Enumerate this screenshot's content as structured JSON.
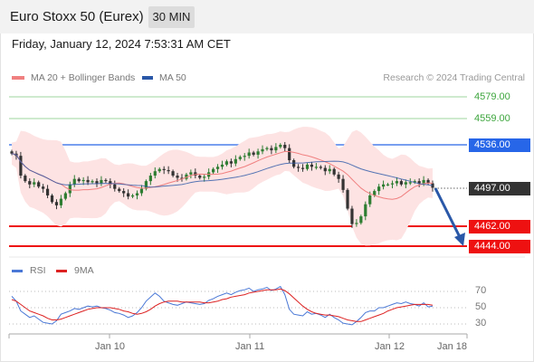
{
  "header": {
    "title": "Euro Stoxx 50 (Eurex)",
    "interval": "30 MIN",
    "datetime": "Friday, January 12, 2024 7:53:31 AM CET"
  },
  "legend": {
    "ma20": "MA 20 + Bollinger Bands",
    "ma50": "MA 50",
    "credit": "Research © 2024 Trading Central"
  },
  "colors": {
    "ma20": "#f08080",
    "ma50": "#2a58a8",
    "bollinger": "#fde3e3",
    "resistance_green": "#3ea63e",
    "pivot_blue": "#2766e8",
    "support_red": "#ee1111",
    "candle_up": "#2e7d32",
    "candle_down": "#333333",
    "rsi": "#4a78d6",
    "rsi_ma": "#dd2222"
  },
  "levels": {
    "r2": "4579.00",
    "r1": "4559.00",
    "pivot": "4536.00",
    "last": "4497.00",
    "s1": "4462.00",
    "s2": "4444.00"
  },
  "rsi_panel": {
    "rsi_label": "RSI",
    "ma_label": "9MA",
    "ticks": [
      "70",
      "50",
      "30"
    ]
  },
  "x_axis": [
    "Jan 10",
    "Jan 11",
    "Jan 12",
    "Jan 18"
  ],
  "chart_data": {
    "type": "candlestick",
    "y_reference_levels": [
      4579,
      4559,
      4536,
      4497,
      4462,
      4444
    ],
    "close_series": [
      4528,
      4526,
      4508,
      4503,
      4500,
      4502,
      4498,
      4496,
      4490,
      4484,
      4481,
      4487,
      4492,
      4500,
      4505,
      4503,
      4504,
      4502,
      4503,
      4501,
      4504,
      4503,
      4500,
      4496,
      4494,
      4492,
      4489,
      4490,
      4492,
      4496,
      4503,
      4508,
      4512,
      4514,
      4513,
      4512,
      4508,
      4506,
      4505,
      4509,
      4511,
      4508,
      4506,
      4507,
      4511,
      4514,
      4516,
      4518,
      4521,
      4519,
      4523,
      4525,
      4526,
      4529,
      4527,
      4530,
      4532,
      4533,
      4531,
      4534,
      4536,
      4533,
      4522,
      4516,
      4515,
      4514,
      4518,
      4516,
      4516,
      4515,
      4512,
      4514,
      4509,
      4505,
      4495,
      4478,
      4464,
      4465,
      4471,
      4482,
      4490,
      4494,
      4498,
      4500,
      4500,
      4501,
      4503,
      4500,
      4502,
      4502,
      4503,
      4501,
      4504,
      4501,
      4497
    ],
    "forecast_target": 4444,
    "rsi": [
      64,
      58,
      46,
      42,
      38,
      40,
      36,
      32,
      31,
      30,
      34,
      42,
      44,
      46,
      49,
      48,
      50,
      52,
      51,
      52,
      50,
      49,
      47,
      44,
      43,
      41,
      38,
      40,
      44,
      50,
      58,
      63,
      68,
      64,
      58,
      56,
      54,
      53,
      55,
      57,
      56,
      55,
      54,
      55,
      59,
      61,
      64,
      66,
      68,
      66,
      69,
      71,
      72,
      74,
      70,
      72,
      73,
      75,
      71,
      73,
      76,
      66,
      48,
      42,
      41,
      40,
      45,
      42,
      43,
      41,
      38,
      42,
      38,
      35,
      31,
      30,
      29,
      33,
      38,
      44,
      46,
      46,
      50,
      50,
      52,
      54,
      56,
      55,
      57,
      55,
      54,
      52,
      56,
      51,
      52
    ],
    "rsi_ma": [
      60,
      58,
      54,
      50,
      46,
      44,
      42,
      40,
      37,
      35,
      35,
      36,
      38,
      40,
      42,
      44,
      46,
      48,
      49,
      50,
      50,
      50,
      50,
      49,
      48,
      46,
      45,
      43,
      42,
      43,
      45,
      48,
      52,
      55,
      57,
      58,
      58,
      58,
      57,
      57,
      57,
      57,
      57,
      56,
      56,
      57,
      58,
      60,
      61,
      63,
      64,
      65,
      66,
      68,
      69,
      70,
      71,
      72,
      72,
      72,
      73,
      71,
      67,
      62,
      57,
      52,
      48,
      45,
      43,
      42,
      41,
      41,
      40,
      39,
      37,
      35,
      34,
      33,
      33,
      35,
      37,
      39,
      41,
      43,
      46,
      48,
      50,
      51,
      52,
      53,
      54,
      54,
      54,
      54,
      53
    ]
  }
}
